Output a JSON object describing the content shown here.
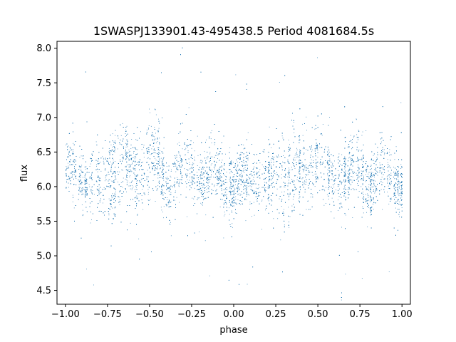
{
  "chart_data": {
    "type": "scatter",
    "title": "1SWASPJ133901.43-495438.5 Period 4081684.5s",
    "xlabel": "phase",
    "ylabel": "flux",
    "xlim": [
      -1.05,
      1.05
    ],
    "ylim": [
      4.3,
      8.1
    ],
    "xticks": [
      -1.0,
      -0.75,
      -0.5,
      -0.25,
      0.0,
      0.25,
      0.5,
      0.75,
      1.0
    ],
    "xtick_labels": [
      "−1.00",
      "−0.75",
      "−0.50",
      "−0.25",
      "0.00",
      "0.25",
      "0.50",
      "0.75",
      "1.00"
    ],
    "yticks": [
      4.5,
      5.0,
      5.5,
      6.0,
      6.5,
      7.0,
      7.5,
      8.0
    ],
    "ytick_labels": [
      "4.5",
      "5.0",
      "5.5",
      "6.0",
      "6.5",
      "7.0",
      "7.5",
      "8.0"
    ],
    "grid": false,
    "marker_color": "#1f77b4",
    "series_profile": {
      "phase": [
        -1.0,
        -0.9,
        -0.8,
        -0.7,
        -0.6,
        -0.5,
        -0.4,
        -0.3,
        -0.2,
        -0.1,
        0.0,
        0.1,
        0.2,
        0.3,
        0.4,
        0.5,
        0.6,
        0.7,
        0.8,
        0.9,
        1.0
      ],
      "flux_center": [
        6.15,
        6.2,
        6.0,
        6.3,
        6.2,
        6.4,
        6.05,
        6.25,
        6.1,
        6.2,
        6.0,
        6.15,
        6.0,
        6.25,
        6.2,
        6.4,
        6.05,
        6.25,
        6.1,
        6.2,
        6.05
      ],
      "flux_scatter": [
        0.25,
        0.25,
        0.35,
        0.45,
        0.35,
        0.4,
        0.3,
        0.35,
        0.3,
        0.3,
        0.3,
        0.3,
        0.35,
        0.45,
        0.35,
        0.4,
        0.3,
        0.35,
        0.3,
        0.3,
        0.3
      ]
    },
    "point_count": 9000
  }
}
